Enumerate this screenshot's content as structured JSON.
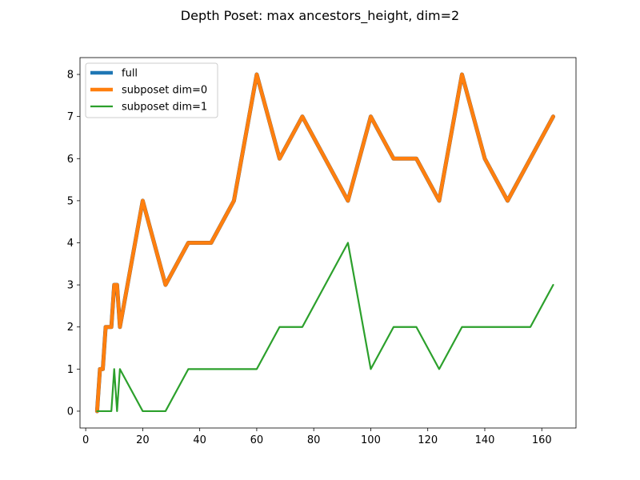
{
  "chart_data": {
    "type": "line",
    "title": "Depth Poset: max ancestors_height, dim=2",
    "xlabel": "",
    "ylabel": "",
    "xlim": [
      -2,
      172
    ],
    "ylim": [
      -0.4,
      8.4
    ],
    "xticks": [
      0,
      20,
      40,
      60,
      80,
      100,
      120,
      140,
      160
    ],
    "yticks": [
      0,
      1,
      2,
      3,
      4,
      5,
      6,
      7,
      8
    ],
    "grid": false,
    "legend_position": "top-left",
    "series": [
      {
        "name": "full",
        "color": "#1f77b4",
        "x": [
          4,
          5,
          6,
          7,
          8,
          9,
          10,
          11,
          12,
          20,
          28,
          36,
          44,
          52,
          60,
          68,
          76,
          84,
          92,
          100,
          108,
          116,
          124,
          132,
          140,
          148,
          156,
          164
        ],
        "y": [
          0,
          1,
          1,
          2,
          2,
          2,
          3,
          3,
          2,
          5,
          3,
          4,
          4,
          5,
          8,
          6,
          7,
          6,
          5,
          7,
          6,
          6,
          5,
          8,
          6,
          5,
          6,
          7
        ]
      },
      {
        "name": "subposet dim=0",
        "color": "#ff7f0e",
        "x": [
          4,
          5,
          6,
          7,
          8,
          9,
          10,
          11,
          12,
          20,
          28,
          36,
          44,
          52,
          60,
          68,
          76,
          84,
          92,
          100,
          108,
          116,
          124,
          132,
          140,
          148,
          156,
          164
        ],
        "y": [
          0,
          1,
          1,
          2,
          2,
          2,
          3,
          3,
          2,
          5,
          3,
          4,
          4,
          5,
          8,
          6,
          7,
          6,
          5,
          7,
          6,
          6,
          5,
          8,
          6,
          5,
          6,
          7
        ]
      },
      {
        "name": "subposet dim=1",
        "color": "#2ca02c",
        "x": [
          4,
          5,
          6,
          7,
          8,
          9,
          10,
          11,
          12,
          20,
          28,
          36,
          44,
          52,
          60,
          68,
          76,
          84,
          92,
          100,
          108,
          116,
          124,
          132,
          140,
          148,
          156,
          164
        ],
        "y": [
          0,
          0,
          0,
          0,
          0,
          0,
          1,
          0,
          1,
          0,
          0,
          1,
          1,
          1,
          1,
          2,
          2,
          3,
          4,
          1,
          2,
          2,
          1,
          2,
          2,
          2,
          2,
          3
        ]
      }
    ]
  }
}
